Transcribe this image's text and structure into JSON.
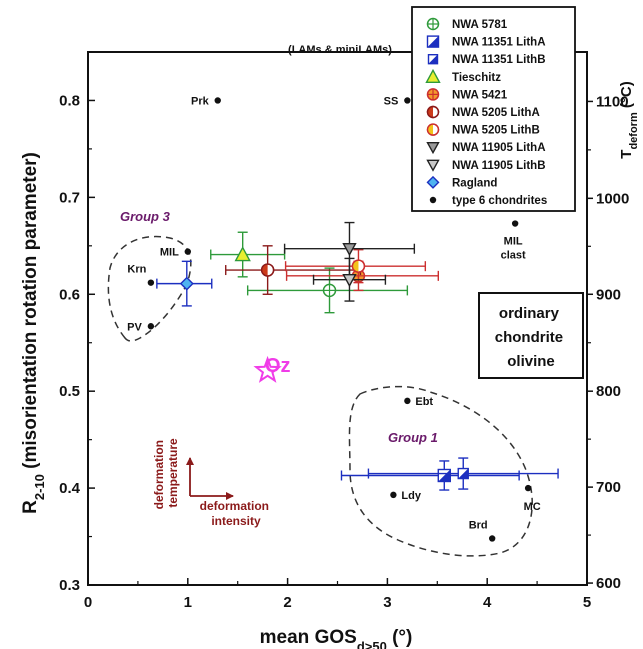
{
  "chart_data": {
    "type": "scatter",
    "xlabel": "mean GOS",
    "xlabel_sub": "d>50",
    "xlabel_unit": " (°)",
    "ylabel": "R",
    "ylabel_sub": "2-10",
    "ylabel_rest": " (misorientation rotation parameter)",
    "y2label": "T",
    "y2label_sub": "deform",
    "y2label_unit": " (°C)",
    "xlim": [
      0,
      5
    ],
    "ylim": [
      0.3,
      0.85
    ],
    "xticks": [
      "0",
      "1",
      "2",
      "3",
      "4",
      "5"
    ],
    "yticks": [
      "0.3",
      "0.4",
      "0.5",
      "0.6",
      "0.7",
      "0.8"
    ],
    "y2ticks": [
      {
        "label": "600",
        "y": 0.302
      },
      {
        "label": "700",
        "y": 0.401
      },
      {
        "label": "800",
        "y": 0.5
      },
      {
        "label": "900",
        "y": 0.6
      },
      {
        "label": "1000",
        "y": 0.699
      },
      {
        "label": "1100",
        "y": 0.799
      }
    ],
    "annotation_top": "(LAMs & miniLAMs)",
    "side_box": [
      "ordinary",
      "chondrite",
      "olivine"
    ],
    "group3_label": "Group 3",
    "group1_label": "Group 1",
    "oz_label": "Oz",
    "oz_point": {
      "x": 1.8,
      "y": 0.521
    },
    "arrow_labels": {
      "vertical": [
        "deformation",
        "temperature"
      ],
      "horizontal": [
        "deformation",
        "intensity"
      ]
    },
    "series": [
      {
        "name": "NWA 5781",
        "color": "#2e9a3a",
        "marker": "circle-cross",
        "points": [
          {
            "x": 2.42,
            "y": 0.604,
            "xerr": [
              0.82,
              0.78
            ],
            "yerr": 0.023
          }
        ]
      },
      {
        "name": "NWA 11351 LithA",
        "color": "#1c2fc0",
        "marker": "square-half",
        "points": [
          {
            "x": 3.57,
            "y": 0.413,
            "xerr": [
              1.03,
              0.75
            ],
            "yerr": 0.015
          }
        ]
      },
      {
        "name": "NWA 11351 LithB",
        "color": "#1c2fc0",
        "marker": "square-half-small",
        "points": [
          {
            "x": 3.76,
            "y": 0.415,
            "xerr": [
              0.95,
              0.95
            ],
            "yerr": 0.016
          }
        ]
      },
      {
        "name": "Tieschitz",
        "color": "#2e9a3a",
        "fill": "#e8ee30",
        "marker": "triangle",
        "points": [
          {
            "x": 1.55,
            "y": 0.641,
            "xerr": [
              0.32,
              0.42
            ],
            "yerr": 0.023
          }
        ]
      },
      {
        "name": "NWA 5421",
        "color": "#cc2f2f",
        "fill": "#f39a2e",
        "marker": "circle-cross-fill",
        "points": [
          {
            "x": 2.71,
            "y": 0.619,
            "xerr": [
              0.72,
              0.8
            ],
            "yerr": 0.015
          }
        ]
      },
      {
        "name": "NWA 5205 LithA",
        "color": "#8b1a1a",
        "fill": "#cc3a1a",
        "marker": "circle-half",
        "points": [
          {
            "x": 1.8,
            "y": 0.625,
            "xerr": [
              0.42,
              0.93
            ],
            "yerr": 0.025
          }
        ]
      },
      {
        "name": "NWA 5205 LithB",
        "color": "#cc2f2f",
        "fill": "#f3c21a",
        "marker": "circle-half",
        "points": [
          {
            "x": 2.71,
            "y": 0.629,
            "xerr": [
              0.73,
              0.67
            ],
            "yerr": 0.017
          }
        ]
      },
      {
        "name": "NWA 11905 LithA",
        "color": "#222222",
        "fill": "#9a9a9a",
        "marker": "triangle-down",
        "points": [
          {
            "x": 2.62,
            "y": 0.647,
            "xerr": [
              0.65,
              0.65
            ],
            "yerr": 0.027
          }
        ]
      },
      {
        "name": "NWA 11905 LithB",
        "color": "#222222",
        "fill": "#c8c8c8",
        "marker": "triangle-down",
        "points": [
          {
            "x": 2.62,
            "y": 0.615,
            "xerr": [
              0.36,
              0.36
            ],
            "yerr": 0.022
          }
        ]
      },
      {
        "name": "Ragland",
        "color": "#1c2fc0",
        "fill": "#4fb3f0",
        "marker": "diamond",
        "points": [
          {
            "x": 0.99,
            "y": 0.611,
            "xerr": [
              0.3,
              0.25
            ],
            "yerr": 0.023
          }
        ]
      },
      {
        "name": "type 6 chondrites",
        "color": "#111111",
        "marker": "dot",
        "points": [
          {
            "x": 1.3,
            "y": 0.8,
            "label": "Prk",
            "pos": "left"
          },
          {
            "x": 3.2,
            "y": 0.8,
            "label": "SS",
            "pos": "left"
          },
          {
            "x": 1.0,
            "y": 0.644,
            "label": "MIL",
            "pos": "left"
          },
          {
            "x": 0.63,
            "y": 0.612,
            "label": "Krn",
            "pos": "up"
          },
          {
            "x": 0.63,
            "y": 0.567,
            "label": "PV",
            "pos": "left"
          },
          {
            "x": 4.28,
            "y": 0.673,
            "label": "MIL clast",
            "pos": "below"
          },
          {
            "x": 3.2,
            "y": 0.49,
            "label": "Ebt",
            "pos": "right"
          },
          {
            "x": 3.06,
            "y": 0.393,
            "label": "Ldy",
            "pos": "right"
          },
          {
            "x": 4.41,
            "y": 0.4,
            "label": "MC",
            "pos": "below"
          },
          {
            "x": 4.05,
            "y": 0.348,
            "label": "Brd",
            "pos": "up"
          }
        ]
      }
    ],
    "legend": {
      "position": "top-right"
    }
  }
}
